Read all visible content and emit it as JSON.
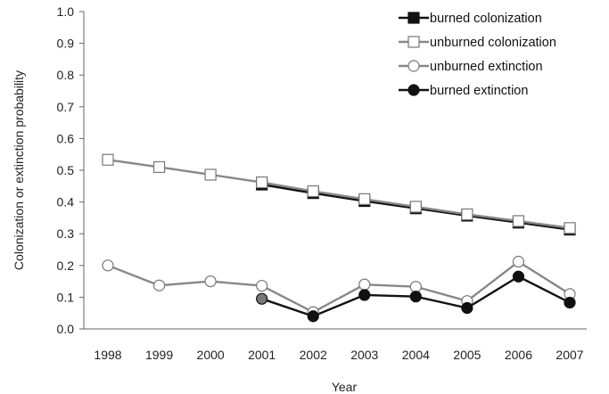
{
  "chart_data": {
    "type": "line",
    "xlabel": "Year",
    "ylabel": "Colonization or extinction probability",
    "ylim": [
      0,
      1.0
    ],
    "y_ticks": [
      "0.0",
      "0.1",
      "0.2",
      "0.3",
      "0.4",
      "0.5",
      "0.6",
      "0.7",
      "0.8",
      "0.9",
      "1.0"
    ],
    "categories": [
      "1998",
      "1999",
      "2000",
      "2001",
      "2002",
      "2003",
      "2004",
      "2005",
      "2006",
      "2007"
    ],
    "grid": false,
    "legend_position": "top-right",
    "series": [
      {
        "name": "burned colonization",
        "marker": "filled-square",
        "line_color": "#111111",
        "marker_fill": "#111111",
        "values": [
          null,
          null,
          null,
          0.455,
          0.428,
          0.403,
          0.38,
          0.357,
          0.335,
          0.313
        ]
      },
      {
        "name": "unburned colonization",
        "marker": "open-square",
        "line_color": "#888888",
        "marker_fill": "#ffffff",
        "values": [
          0.533,
          0.51,
          0.486,
          0.462,
          0.434,
          0.409,
          0.385,
          0.361,
          0.34,
          0.318
        ]
      },
      {
        "name": "unburned extinction",
        "marker": "open-circle",
        "line_color": "#888888",
        "marker_fill": "#ffffff",
        "values": [
          0.2,
          0.137,
          0.15,
          0.136,
          0.053,
          0.14,
          0.133,
          0.088,
          0.212,
          0.11
        ]
      },
      {
        "name": "burned extinction",
        "marker": "filled-circle",
        "line_color": "#111111",
        "marker_fill": "#111111",
        "values": [
          null,
          null,
          null,
          0.095,
          0.04,
          0.107,
          0.102,
          0.066,
          0.165,
          0.083
        ]
      }
    ],
    "highlight_marker": {
      "series": 3,
      "index": 0,
      "fill": "#777777"
    }
  }
}
